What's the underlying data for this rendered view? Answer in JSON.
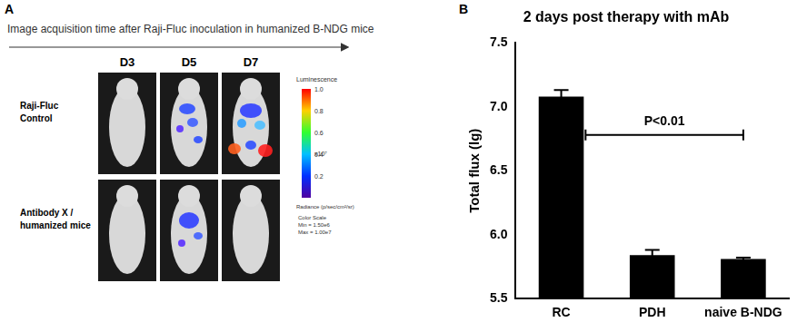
{
  "panel_a": {
    "letter": "A",
    "title": "Image acquisition time after Raji-Fluc inoculation in humanized B-NDG mice",
    "columns": [
      "D3",
      "D5",
      "D7"
    ],
    "rows": [
      [
        "Raji-Fluc",
        "Control"
      ],
      [
        "Antibody X /",
        "humanized mice"
      ]
    ],
    "color_bar": {
      "title": "Luminescence",
      "ticks": [
        "1.0",
        "0.8",
        "0.6",
        "0.4",
        "0.2"
      ],
      "exponent": "x10⁷",
      "unit": "Radiance (p/sec/cm²/sr)",
      "scale_text": [
        "Color Scale",
        "Min = 1.50e6",
        "Max = 1.00e7"
      ]
    }
  },
  "chart_data": {
    "panel": "B",
    "type": "bar",
    "title": "2 days post therapy with mAb",
    "y_label": "Total flux (lg)",
    "categories": [
      "RC",
      "PDH",
      "naive B-NDG"
    ],
    "values": [
      7.08,
      5.84,
      5.81
    ],
    "errors": [
      0.05,
      0.04,
      0.01
    ],
    "color": "#000000",
    "ylim": [
      5.5,
      7.5
    ],
    "yticks": [
      5.5,
      {
        "value": 6,
        "label": "6.0"
      },
      6.5,
      {
        "value": 7,
        "label": "7.0"
      },
      7.5
    ],
    "grid": false,
    "annotations": [
      {
        "text": "P<0.01",
        "from": "RC",
        "to": "naive B-NDG",
        "y": 6.78
      }
    ]
  }
}
